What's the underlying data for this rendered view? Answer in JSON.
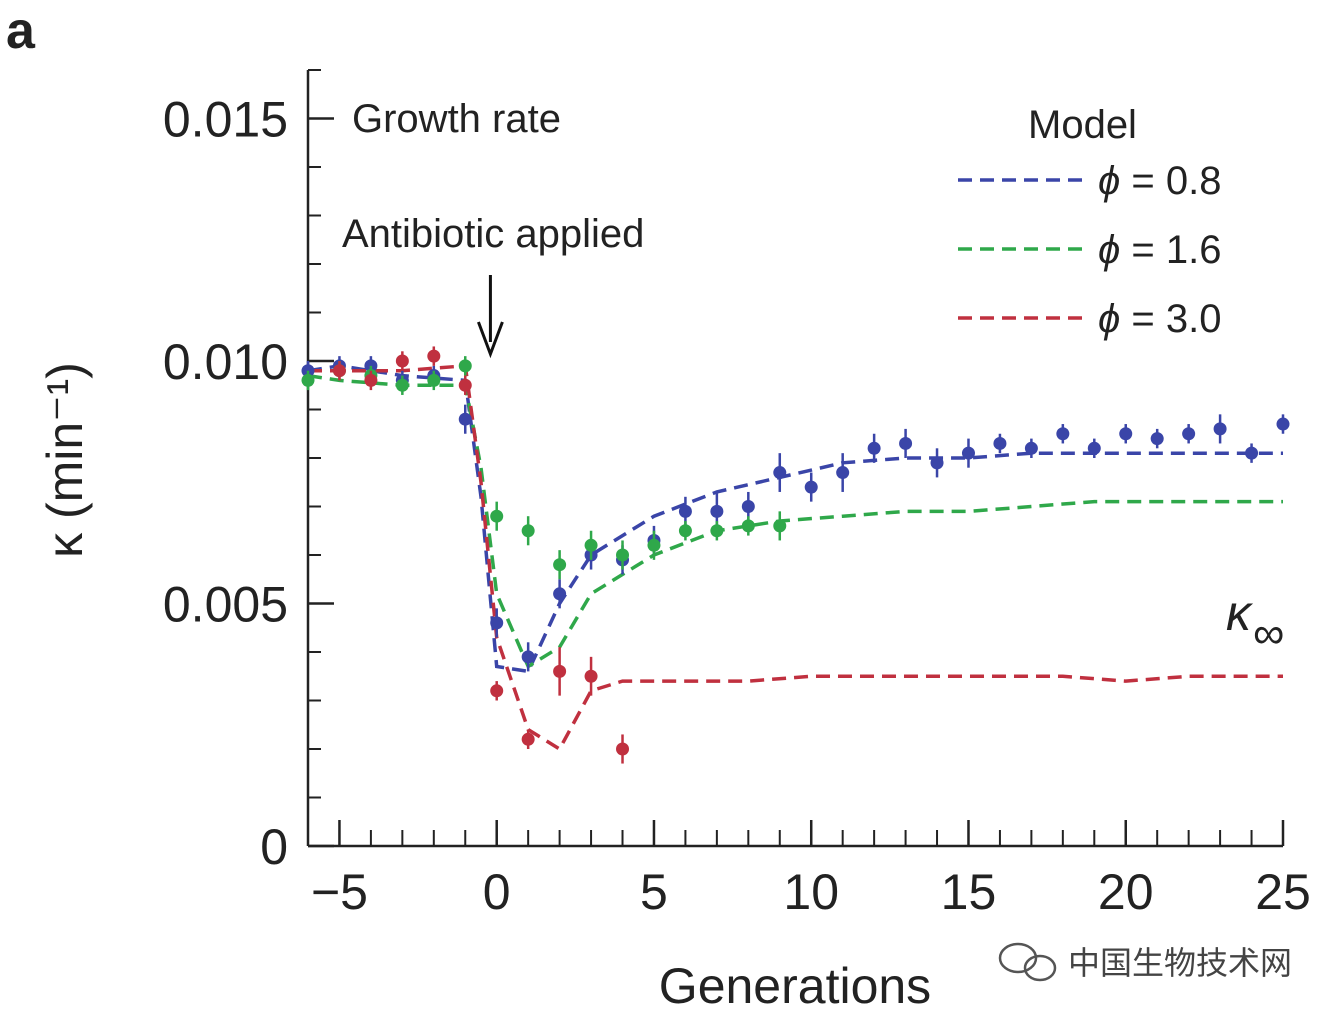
{
  "panel_label": "a",
  "watermark": "中国生物技术网",
  "chart_data": {
    "type": "line",
    "title": "",
    "xlabel": "Generations",
    "ylabel": "κ (min⁻¹)",
    "xlim": [
      -6,
      25
    ],
    "ylim": [
      0,
      0.016
    ],
    "xticks": [
      -5,
      0,
      5,
      10,
      15,
      20,
      25
    ],
    "xtick_labels": [
      "−5",
      "0",
      "5",
      "10",
      "15",
      "20",
      "25"
    ],
    "yticks": [
      0,
      0.005,
      0.01,
      0.015
    ],
    "ytick_labels": [
      "0",
      "0.005",
      "0.010",
      "0.015"
    ],
    "annotations": {
      "growth_rate": "Growth rate",
      "antibiotic": "Antibiotic applied",
      "antibiotic_x": -0.2,
      "kappa_inf": "κ",
      "kappa_inf_sub": "∞"
    },
    "legend": {
      "title": "Model",
      "position": "top-right",
      "entries": [
        {
          "symbol": "ϕ",
          "text": " = 0.8",
          "color": "#3a45a8"
        },
        {
          "symbol": "ϕ",
          "text": " = 1.6",
          "color": "#2fa84a"
        },
        {
          "symbol": "ϕ",
          "text": " = 3.0",
          "color": "#c0303f"
        }
      ]
    },
    "series": [
      {
        "name": "ϕ = 0.8",
        "color": "#3a45a8",
        "model_x": [
          -6,
          -5,
          -3,
          -1,
          -0.5,
          0,
          1,
          2,
          3,
          5,
          7,
          9,
          11,
          13,
          15,
          17,
          19,
          21,
          23,
          25
        ],
        "model_y": [
          0.0098,
          0.0099,
          0.0097,
          0.0096,
          0.0072,
          0.0037,
          0.0036,
          0.005,
          0.006,
          0.0068,
          0.0073,
          0.0076,
          0.0079,
          0.008,
          0.008,
          0.0081,
          0.0081,
          0.0081,
          0.0081,
          0.0081
        ],
        "points_x": [
          -6,
          -5,
          -4,
          -3,
          -2,
          -1,
          0,
          1,
          2,
          3,
          4,
          5,
          6,
          7,
          8,
          9,
          10,
          11,
          12,
          13,
          14,
          15,
          16,
          17,
          18,
          19,
          20,
          21,
          22,
          23,
          24,
          25
        ],
        "points_y": [
          0.0098,
          0.0099,
          0.0099,
          0.0096,
          0.0097,
          0.0088,
          0.0046,
          0.0039,
          0.0052,
          0.006,
          0.0059,
          0.0063,
          0.0069,
          0.0069,
          0.007,
          0.0077,
          0.0074,
          0.0077,
          0.0082,
          0.0083,
          0.0079,
          0.0081,
          0.0083,
          0.0082,
          0.0085,
          0.0082,
          0.0085,
          0.0084,
          0.0085,
          0.0086,
          0.0081,
          0.0087
        ],
        "errors": [
          0.0002,
          0.0002,
          0.0002,
          0.0002,
          0.0002,
          0.0003,
          0.0003,
          0.0003,
          0.0003,
          0.0003,
          0.0003,
          0.0003,
          0.0003,
          0.0004,
          0.0003,
          0.0004,
          0.0003,
          0.0004,
          0.0003,
          0.0003,
          0.0003,
          0.0003,
          0.0002,
          0.0002,
          0.0002,
          0.0002,
          0.0002,
          0.0002,
          0.0002,
          0.0003,
          0.0002,
          0.0002
        ]
      },
      {
        "name": "ϕ = 1.6",
        "color": "#2fa84a",
        "model_x": [
          -6,
          -5,
          -3,
          -1,
          -0.5,
          0,
          1,
          2,
          3,
          5,
          7,
          9,
          11,
          13,
          15,
          17,
          19,
          21,
          23,
          25
        ],
        "model_y": [
          0.0097,
          0.0096,
          0.0095,
          0.0095,
          0.0078,
          0.0052,
          0.0037,
          0.0041,
          0.0052,
          0.006,
          0.0065,
          0.0067,
          0.0068,
          0.0069,
          0.0069,
          0.007,
          0.0071,
          0.0071,
          0.0071,
          0.0071
        ],
        "points_x": [
          -6,
          -5,
          -4,
          -3,
          -2,
          -1,
          0,
          1,
          2,
          3,
          4,
          5,
          6,
          7,
          8,
          9
        ],
        "points_y": [
          0.0096,
          0.0098,
          0.0097,
          0.0095,
          0.0096,
          0.0099,
          0.0068,
          0.0065,
          0.0058,
          0.0062,
          0.006,
          0.0062,
          0.0065,
          0.0065,
          0.0066,
          0.0066
        ],
        "errors": [
          0.0002,
          0.0002,
          0.0002,
          0.0002,
          0.0002,
          0.0002,
          0.0003,
          0.0003,
          0.0003,
          0.0003,
          0.0003,
          0.0003,
          0.0002,
          0.0002,
          0.0002,
          0.0003
        ]
      },
      {
        "name": "ϕ = 3.0",
        "color": "#c0303f",
        "model_x": [
          -6,
          -5,
          -3,
          -1,
          -0.5,
          0,
          1,
          2,
          3,
          4,
          6,
          8,
          10,
          12,
          14,
          16,
          18,
          20,
          22,
          24,
          25
        ],
        "model_y": [
          0.0098,
          0.0098,
          0.0098,
          0.0099,
          0.0075,
          0.0043,
          0.0024,
          0.002,
          0.0032,
          0.0034,
          0.0034,
          0.0034,
          0.0035,
          0.0035,
          0.0035,
          0.0035,
          0.0035,
          0.0034,
          0.0035,
          0.0035,
          0.0035
        ],
        "points_x": [
          -5,
          -4,
          -3,
          -2,
          -1,
          0,
          1,
          2,
          3,
          4
        ],
        "points_y": [
          0.0098,
          0.0096,
          0.01,
          0.0101,
          0.0095,
          0.0032,
          0.0022,
          0.0036,
          0.0035,
          0.002
        ],
        "errors": [
          0.0002,
          0.0002,
          0.0002,
          0.0002,
          0.0002,
          0.0002,
          0.0002,
          0.0005,
          0.0004,
          0.0003
        ]
      }
    ]
  }
}
